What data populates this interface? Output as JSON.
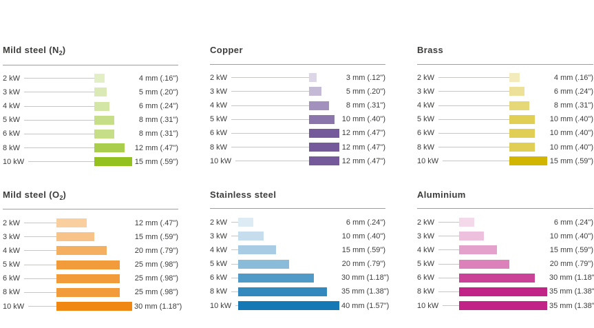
{
  "style": {
    "background": "#ffffff",
    "text_color": "#3c3c3b",
    "rule_color": "#9d9d9c",
    "leader_color": "#c5c5c4"
  },
  "chart_data": [
    {
      "type": "bar",
      "orientation": "horizontal",
      "title_plain": "Mild steel (N2)",
      "title_segments": [
        {
          "text": "Mild steel (N"
        },
        {
          "text": "2",
          "subscript": true
        },
        {
          "text": ")"
        }
      ],
      "color": "#94c11f",
      "unit": "mm",
      "xlim": [
        0,
        15
      ],
      "max_mm": 15,
      "categories": [
        "2 kW",
        "3 kW",
        "4 kW",
        "5 kW",
        "6 kW",
        "8 kW",
        "10 kW"
      ],
      "values_mm": [
        4,
        5,
        6,
        8,
        8,
        12,
        15
      ],
      "value_labels": [
        "4 mm (.16\")",
        "5 mm (.20\")",
        "6 mm (.24\")",
        "8 mm (.31\")",
        "8 mm (.31\")",
        "12 mm (.47\")",
        "15 mm (.59\")"
      ]
    },
    {
      "type": "bar",
      "orientation": "horizontal",
      "title_plain": "Copper",
      "title_segments": [
        {
          "text": "Copper"
        }
      ],
      "color": "#745a9b",
      "unit": "mm",
      "xlim": [
        0,
        12
      ],
      "max_mm": 12,
      "categories": [
        "2 kW",
        "3 kW",
        "4 kW",
        "5 kW",
        "6 kW",
        "8 kW",
        "10 kW"
      ],
      "values_mm": [
        3,
        5,
        8,
        10,
        12,
        12,
        12
      ],
      "value_labels": [
        "3 mm (.12\")",
        "5 mm (.20\")",
        "8 mm (.31\")",
        "10 mm (.40\")",
        "12 mm (.47\")",
        "12 mm (.47\")",
        "12 mm (.47\")"
      ]
    },
    {
      "type": "bar",
      "orientation": "horizontal",
      "title_plain": "Brass",
      "title_segments": [
        {
          "text": "Brass"
        }
      ],
      "color": "#d2b500",
      "unit": "mm",
      "xlim": [
        0,
        15
      ],
      "max_mm": 15,
      "categories": [
        "2 kW",
        "3 kW",
        "4 kW",
        "5 kW",
        "6 kW",
        "8 kW",
        "10 kW"
      ],
      "values_mm": [
        4,
        6,
        8,
        10,
        10,
        10,
        15
      ],
      "value_labels": [
        "4 mm (.16\")",
        "6 mm (.24\")",
        "8 mm (.31\")",
        "10 mm (.40\")",
        "10 mm (.40\")",
        "10 mm (.40\")",
        "15 mm (.59\")"
      ]
    },
    {
      "type": "bar",
      "orientation": "horizontal",
      "title_plain": "Mild steel (O2)",
      "title_segments": [
        {
          "text": "Mild steel (O"
        },
        {
          "text": "2",
          "subscript": true
        },
        {
          "text": ")"
        }
      ],
      "color": "#ef8712",
      "unit": "mm",
      "xlim": [
        0,
        30
      ],
      "max_mm": 30,
      "categories": [
        "2 kW",
        "3 kW",
        "4 kW",
        "5 kW",
        "6 kW",
        "8 kW",
        "10 kW"
      ],
      "values_mm": [
        12,
        15,
        20,
        25,
        25,
        25,
        30
      ],
      "value_labels": [
        "12 mm (.47\")",
        "15 mm (.59\")",
        "20 mm (.79\")",
        "25 mm (.98\")",
        "25 mm (.98\")",
        "25 mm (.98\")",
        "30 mm (1.18\")"
      ]
    },
    {
      "type": "bar",
      "orientation": "horizontal",
      "title_plain": "Stainless steel",
      "title_segments": [
        {
          "text": "Stainless steel"
        }
      ],
      "color": "#1678b4",
      "unit": "mm",
      "xlim": [
        0,
        40
      ],
      "max_mm": 40,
      "categories": [
        "2 kW",
        "3 kW",
        "4 kW",
        "5 kW",
        "6 kW",
        "8 kW",
        "10 kW"
      ],
      "values_mm": [
        6,
        10,
        15,
        20,
        30,
        35,
        40
      ],
      "value_labels": [
        "6 mm (.24\")",
        "10 mm (.40\")",
        "15 mm (.59\")",
        "20 mm (.79\")",
        "30 mm (1.18\")",
        "35 mm (1.38\")",
        "40 mm (1.57\")"
      ]
    },
    {
      "type": "bar",
      "orientation": "horizontal",
      "title_plain": "Aluminium",
      "title_segments": [
        {
          "text": "Aluminium"
        }
      ],
      "color": "#c12387",
      "unit": "mm",
      "xlim": [
        0,
        35
      ],
      "max_mm": 35,
      "categories": [
        "2 kW",
        "3 kW",
        "4 kW",
        "5 kW",
        "6 kW",
        "8 kW",
        "10 kW"
      ],
      "values_mm": [
        6,
        10,
        15,
        20,
        30,
        35,
        35
      ],
      "value_labels": [
        "6 mm (.24\")",
        "10 mm (.40\")",
        "15 mm (.59\")",
        "20 mm (.79\")",
        "30 mm (1.18\")",
        "35 mm (1.38\")",
        "35 mm (1.38\")"
      ]
    }
  ]
}
